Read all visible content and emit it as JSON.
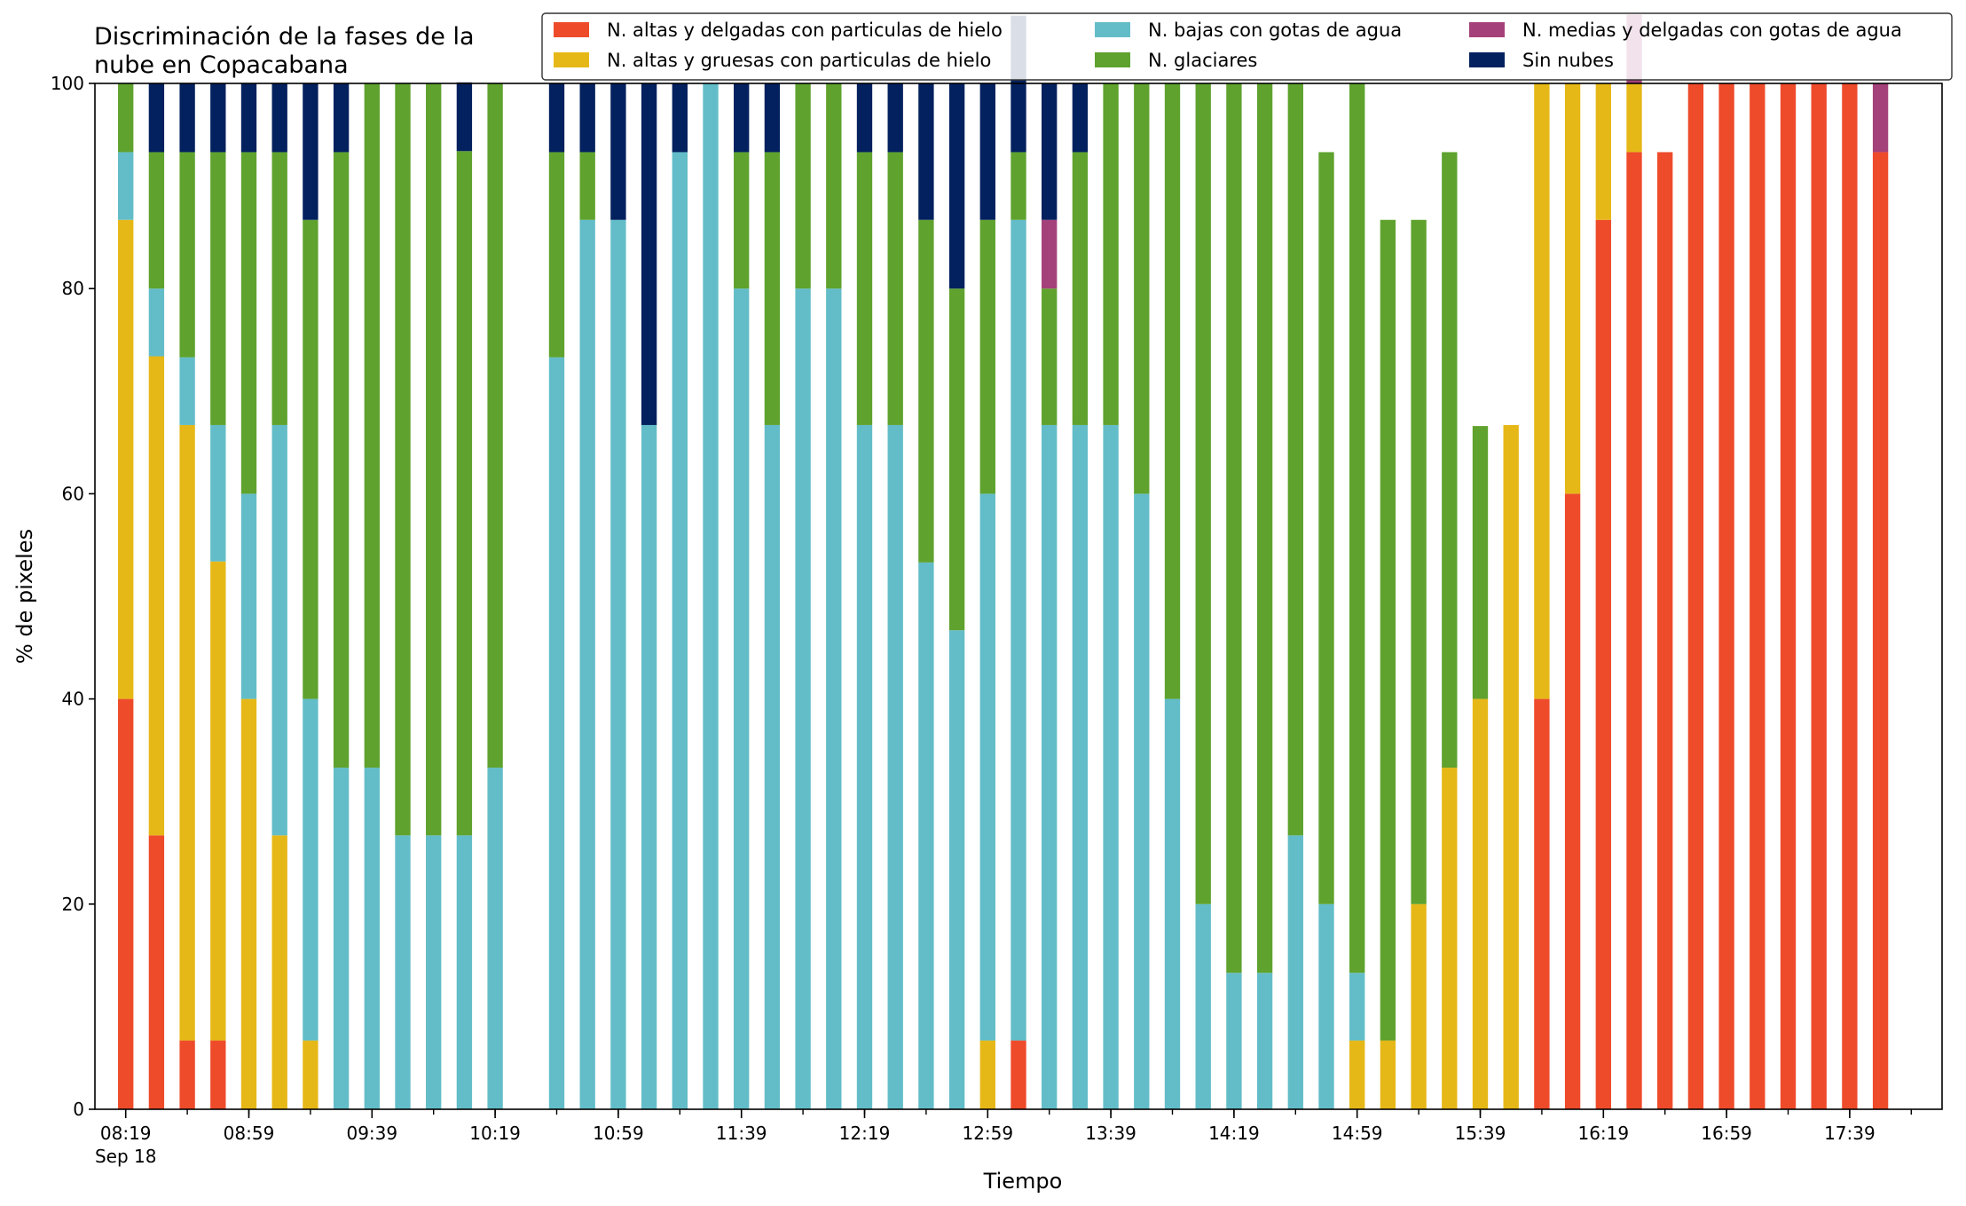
{
  "chart_data": {
    "type": "bar",
    "stacked": true,
    "title": "Discriminación de la fases de la\nnube en Copacabana",
    "xlabel": "Tiempo",
    "ylabel": "% de pixeles",
    "ylim": [
      0,
      100
    ],
    "yticks": [
      0,
      20,
      40,
      60,
      80,
      100
    ],
    "xlim": [
      "08:09",
      "18:09"
    ],
    "date_label": "Sep 18",
    "x_tick_step_minutes": 20,
    "x_tick_labels": [
      "08:19",
      "08:59",
      "09:39",
      "10:19",
      "10:59",
      "11:39",
      "12:19",
      "12:59",
      "13:39",
      "14:19",
      "14:59",
      "15:39",
      "16:19",
      "16:59",
      "17:39"
    ],
    "bar_interval_minutes": 10,
    "bar_width_minutes": 5,
    "legend_position": "top-right",
    "grid": false,
    "times": [
      "08:19",
      "08:29",
      "08:39",
      "08:49",
      "08:59",
      "09:09",
      "09:19",
      "09:29",
      "09:39",
      "09:49",
      "09:59",
      "10:09",
      "10:19",
      "10:29",
      "10:39",
      "10:49",
      "10:59",
      "11:09",
      "11:19",
      "11:29",
      "11:39",
      "11:49",
      "11:59",
      "12:09",
      "12:19",
      "12:29",
      "12:39",
      "12:49",
      "12:59",
      "13:09",
      "13:19",
      "13:29",
      "13:39",
      "13:49",
      "13:59",
      "14:09",
      "14:19",
      "14:29",
      "14:39",
      "14:49",
      "14:59",
      "15:09",
      "15:19",
      "15:29",
      "15:39",
      "15:49",
      "15:59",
      "16:09",
      "16:19",
      "16:29",
      "16:39",
      "16:49",
      "16:59",
      "17:09",
      "17:19",
      "17:29",
      "17:39",
      "17:49"
    ],
    "series": [
      {
        "name": "N. altas y delgadas con particulas de hielo",
        "color": "#EE4B2B",
        "values": [
          40,
          26.7,
          6.7,
          6.7,
          0,
          0,
          0,
          0,
          0,
          0,
          0,
          0,
          0,
          0,
          0,
          0,
          0,
          0,
          0,
          0,
          0,
          0,
          0,
          0,
          0,
          0,
          0,
          0,
          0,
          6.7,
          0,
          0,
          0,
          0,
          0,
          0,
          0,
          0,
          0,
          0,
          0,
          0,
          0,
          0,
          0,
          0,
          40,
          60,
          86.7,
          93.3,
          93.3,
          100,
          100,
          100,
          100,
          100,
          100,
          93.3
        ]
      },
      {
        "name": "N. altas y gruesas con particulas de hielo",
        "color": "#E6B817",
        "values": [
          46.7,
          46.7,
          60,
          46.7,
          40,
          26.7,
          6.7,
          0,
          0,
          0,
          0,
          0,
          0,
          0,
          0,
          0,
          0,
          0,
          0,
          0,
          0,
          0,
          0,
          0,
          0,
          0,
          0,
          0,
          6.7,
          0,
          0,
          0,
          0,
          0,
          0,
          0,
          0,
          0,
          0,
          0,
          6.7,
          6.7,
          20,
          33.3,
          40,
          66.7,
          60,
          40,
          13.3,
          6.7,
          0,
          0,
          0,
          0,
          0,
          0,
          0,
          0
        ]
      },
      {
        "name": "N. bajas con gotas de agua",
        "color": "#63BDC8",
        "values": [
          6.6,
          6.6,
          6.6,
          13.3,
          20,
          40,
          33.3,
          33.3,
          33.3,
          26.7,
          26.7,
          26.7,
          33.3,
          0,
          73.3,
          86.7,
          86.7,
          66.7,
          93.3,
          100,
          80,
          66.7,
          80,
          80,
          66.7,
          66.7,
          53.3,
          46.7,
          53.3,
          80,
          66.7,
          66.7,
          66.7,
          60,
          40,
          20,
          13.3,
          13.3,
          26.7,
          20,
          6.6,
          0,
          0,
          0,
          0,
          0,
          0,
          0,
          0,
          0,
          0,
          0,
          0,
          0,
          0,
          0,
          0,
          0
        ]
      },
      {
        "name": "N. glaciares",
        "color": "#5FA22E",
        "values": [
          6.7,
          13.3,
          20,
          26.6,
          33.3,
          26.6,
          46.7,
          60,
          66.7,
          73.3,
          73.3,
          66.7,
          66.7,
          0,
          20,
          6.6,
          0,
          0,
          0,
          0,
          13.3,
          26.6,
          20,
          20,
          26.6,
          26.6,
          33.4,
          33.3,
          26.7,
          6.6,
          13.3,
          26.6,
          33.3,
          40,
          60,
          80,
          86.7,
          86.7,
          73.3,
          73.3,
          86.7,
          80,
          66.7,
          60,
          26.6,
          0,
          0,
          0,
          0,
          0,
          0,
          0,
          0,
          0,
          0,
          0,
          0,
          0
        ]
      },
      {
        "name": "N. medias y delgadas con gotas de agua",
        "color": "#A5417A",
        "values": [
          0,
          0,
          0,
          0,
          0,
          0,
          0,
          0,
          0,
          0,
          0,
          0,
          0,
          0,
          0,
          0,
          0,
          0,
          0,
          0,
          0,
          0,
          0,
          0,
          0,
          0,
          0,
          0,
          0,
          0,
          6.7,
          0,
          0,
          0,
          0,
          0,
          0,
          0,
          0,
          0,
          0,
          0,
          0,
          0,
          0,
          0,
          0,
          0,
          0,
          6.7,
          0,
          0,
          0,
          0,
          0,
          0,
          0,
          6.7
        ]
      },
      {
        "name": "Sin nubes",
        "color": "#03215E",
        "values": [
          0,
          6.7,
          6.7,
          6.7,
          6.7,
          6.7,
          13.3,
          6.7,
          0,
          0,
          0,
          6.7,
          0,
          0,
          6.7,
          6.7,
          13.3,
          33.3,
          6.7,
          0,
          6.7,
          6.7,
          0,
          0,
          6.7,
          6.7,
          13.3,
          20,
          13.3,
          13.3,
          13.3,
          6.7,
          0,
          0,
          0,
          0,
          0,
          0,
          0,
          0,
          0,
          0,
          0,
          0,
          0,
          0,
          0,
          0,
          0,
          0,
          0,
          0,
          0,
          0,
          0,
          0,
          0,
          0
        ]
      }
    ]
  }
}
